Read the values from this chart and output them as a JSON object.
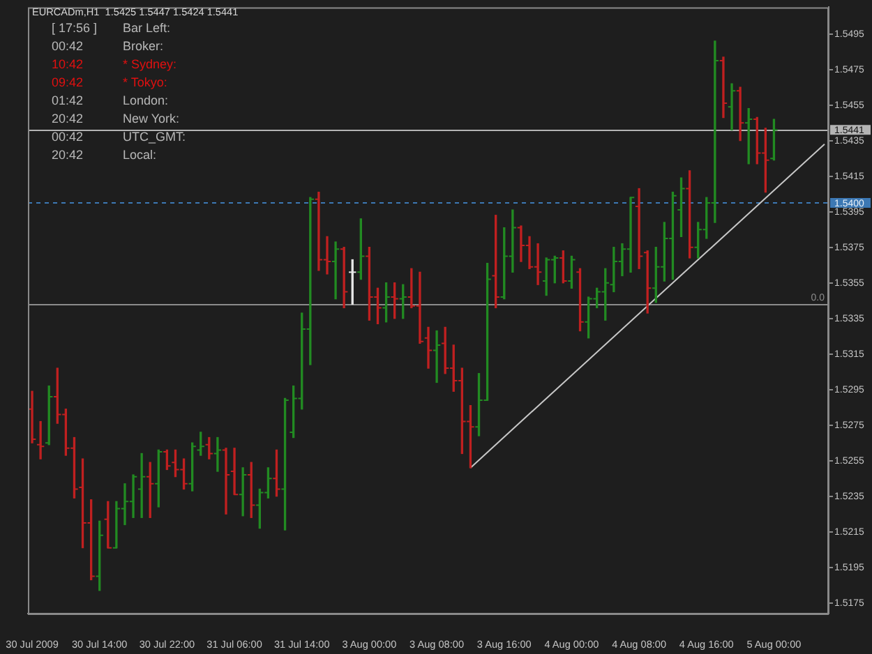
{
  "chart_data": {
    "type": "candlestick",
    "title": "EURCADm,H1  1.5425 1.5447 1.5424 1.5441",
    "categories": [
      "30 Jul 2009",
      null,
      null,
      null,
      null,
      null,
      null,
      null,
      "30 Jul 14:00",
      null,
      null,
      null,
      null,
      null,
      null,
      null,
      "30 Jul 22:00",
      null,
      null,
      null,
      null,
      null,
      null,
      null,
      "31 Jul 06:00",
      null,
      null,
      null,
      null,
      null,
      null,
      null,
      "31 Jul 14:00",
      null,
      null,
      null,
      null,
      null,
      null,
      null,
      "3 Aug 00:00",
      null,
      null,
      null,
      null,
      null,
      null,
      null,
      "3 Aug 08:00",
      null,
      null,
      null,
      null,
      null,
      null,
      null,
      "3 Aug 16:00",
      null,
      null,
      null,
      null,
      null,
      null,
      null,
      "4 Aug 00:00",
      null,
      null,
      null,
      null,
      null,
      null,
      null,
      "4 Aug 08:00",
      null,
      null,
      null,
      null,
      null,
      null,
      null,
      "4 Aug 16:00",
      null,
      null,
      null,
      null,
      null,
      null,
      null,
      "5 Aug 00:00",
      null,
      null,
      null,
      null,
      null,
      null
    ],
    "ohlc": [
      [
        1.5284,
        1.5294,
        1.5265,
        1.5267
      ],
      [
        1.5264,
        1.5277,
        1.5256,
        1.5263
      ],
      [
        1.5265,
        1.5297,
        1.5264,
        1.5291
      ],
      [
        1.5291,
        1.5307,
        1.5276,
        1.5281
      ],
      [
        1.5281,
        1.5284,
        1.5258,
        1.5262
      ],
      [
        1.5262,
        1.5268,
        1.5234,
        1.5239
      ],
      [
        1.524,
        1.5256,
        1.5206,
        1.522
      ],
      [
        1.522,
        1.5233,
        1.5188,
        1.519
      ],
      [
        1.519,
        1.5221,
        1.5182,
        1.5213
      ],
      [
        1.5222,
        1.5232,
        1.5206,
        1.5206
      ],
      [
        1.5206,
        1.5232,
        1.5206,
        1.5228
      ],
      [
        1.5228,
        1.5242,
        1.5219,
        1.5232
      ],
      [
        1.5232,
        1.5247,
        1.5223,
        1.5246
      ],
      [
        1.5239,
        1.5259,
        1.5223,
        1.5246
      ],
      [
        1.5246,
        1.5254,
        1.5223,
        1.5242
      ],
      [
        1.5242,
        1.5261,
        1.5229,
        1.526
      ],
      [
        1.526,
        1.5261,
        1.525,
        1.5252
      ],
      [
        1.5254,
        1.5261,
        1.5246,
        1.525
      ],
      [
        1.525,
        1.5256,
        1.5239,
        1.5242
      ],
      [
        1.5242,
        1.5265,
        1.5238,
        1.5263
      ],
      [
        1.5261,
        1.5271,
        1.5258,
        1.5263
      ],
      [
        1.5264,
        1.5268,
        1.5256,
        1.5259
      ],
      [
        1.5259,
        1.5268,
        1.5249,
        1.5261
      ],
      [
        1.5261,
        1.5262,
        1.5225,
        1.5247
      ],
      [
        1.5249,
        1.5262,
        1.5236,
        1.5236
      ],
      [
        1.5236,
        1.5251,
        1.5224,
        1.5247
      ],
      [
        1.5247,
        1.5254,
        1.5223,
        1.523
      ],
      [
        1.523,
        1.5239,
        1.5217,
        1.5237
      ],
      [
        1.5237,
        1.5251,
        1.5234,
        1.5245
      ],
      [
        1.5245,
        1.5261,
        1.5235,
        1.5239
      ],
      [
        1.5239,
        1.529,
        1.5216,
        1.5289
      ],
      [
        1.5271,
        1.5297,
        1.5268,
        1.529
      ],
      [
        1.529,
        1.5338,
        1.5284,
        1.5329
      ],
      [
        1.5329,
        1.5403,
        1.5309,
        1.5402
      ],
      [
        1.5402,
        1.5406,
        1.5362,
        1.5368
      ],
      [
        1.5368,
        1.5381,
        1.536,
        1.5367
      ],
      [
        1.5367,
        1.5378,
        1.5346,
        1.5374
      ],
      [
        1.5374,
        1.5375,
        1.5341,
        1.535
      ],
      [
        1.5361,
        1.5368,
        1.5343,
        1.5361
      ],
      [
        1.5361,
        1.5391,
        1.5357,
        1.537
      ],
      [
        1.537,
        1.5375,
        1.5334,
        1.5347
      ],
      [
        1.5347,
        1.5352,
        1.5332,
        1.5341
      ],
      [
        1.5341,
        1.5355,
        1.5333,
        1.5347
      ],
      [
        1.5347,
        1.5355,
        1.5335,
        1.5346
      ],
      [
        1.5346,
        1.5354,
        1.5335,
        1.5347
      ],
      [
        1.5347,
        1.5363,
        1.5341,
        1.5342
      ],
      [
        1.5342,
        1.5361,
        1.5321,
        1.5322
      ],
      [
        1.5324,
        1.533,
        1.5307,
        1.5317
      ],
      [
        1.5317,
        1.5328,
        1.5299,
        1.532
      ],
      [
        1.5321,
        1.533,
        1.5304,
        1.5307
      ],
      [
        1.5307,
        1.532,
        1.5294,
        1.53
      ],
      [
        1.53,
        1.5307,
        1.5259,
        1.5277
      ],
      [
        1.5277,
        1.5286,
        1.5251,
        1.5274
      ],
      [
        1.5274,
        1.5304,
        1.5269,
        1.5289
      ],
      [
        1.5289,
        1.5366,
        1.5289,
        1.5357
      ],
      [
        1.5359,
        1.5393,
        1.5341,
        1.5347
      ],
      [
        1.5347,
        1.5386,
        1.5346,
        1.537
      ],
      [
        1.537,
        1.5396,
        1.5361,
        1.5386
      ],
      [
        1.5386,
        1.5387,
        1.5367,
        1.5376
      ],
      [
        1.5376,
        1.5381,
        1.5363,
        1.5364
      ],
      [
        1.5364,
        1.5377,
        1.5354,
        1.5361
      ],
      [
        1.5356,
        1.5369,
        1.5348,
        1.5368
      ],
      [
        1.5368,
        1.537,
        1.5355,
        1.5369
      ],
      [
        1.5369,
        1.5373,
        1.5355,
        1.5356
      ],
      [
        1.5356,
        1.537,
        1.5352,
        1.5368
      ],
      [
        1.5361,
        1.5363,
        1.5328,
        1.5333
      ],
      [
        1.5333,
        1.5347,
        1.5324,
        1.5346
      ],
      [
        1.5346,
        1.5352,
        1.5341,
        1.535
      ],
      [
        1.535,
        1.5363,
        1.5334,
        1.5355
      ],
      [
        1.5354,
        1.5375,
        1.535,
        1.5367
      ],
      [
        1.5367,
        1.5377,
        1.5359,
        1.5374
      ],
      [
        1.5374,
        1.5403,
        1.5361,
        1.5403
      ],
      [
        1.5398,
        1.5408,
        1.5363,
        1.537
      ],
      [
        1.5372,
        1.5373,
        1.5338,
        1.5352
      ],
      [
        1.5352,
        1.5375,
        1.5344,
        1.5364
      ],
      [
        1.5364,
        1.5389,
        1.5356,
        1.538
      ],
      [
        1.538,
        1.5406,
        1.5357,
        1.5404
      ],
      [
        1.5396,
        1.5414,
        1.5381,
        1.5408
      ],
      [
        1.5408,
        1.5418,
        1.5369,
        1.5375
      ],
      [
        1.5375,
        1.5389,
        1.5369,
        1.5385
      ],
      [
        1.5385,
        1.5403,
        1.538,
        1.54
      ],
      [
        1.54,
        1.5491,
        1.5389,
        1.548
      ],
      [
        1.548,
        1.5482,
        1.5448,
        1.5456
      ],
      [
        1.5454,
        1.5467,
        1.5441,
        1.5463
      ],
      [
        1.5463,
        1.5465,
        1.5435,
        1.5445
      ],
      [
        1.5445,
        1.5453,
        1.5422,
        1.5447
      ],
      [
        1.5447,
        1.5448,
        1.5422,
        1.5428
      ],
      [
        1.5428,
        1.5442,
        1.5406,
        1.5424
      ],
      [
        1.5425,
        1.5447,
        1.5424,
        1.5441
      ],
      null,
      null,
      null,
      null,
      null,
      null
    ],
    "colors": [
      "#c02020",
      "#c02020",
      "#228b22",
      "#c02020",
      "#c02020",
      "#c02020",
      "#c02020",
      "#c02020",
      "#228b22",
      "#c02020",
      "#228b22",
      "#228b22",
      "#228b22",
      "#228b22",
      "#c02020",
      "#228b22",
      "#c02020",
      "#c02020",
      "#c02020",
      "#228b22",
      "#228b22",
      "#c02020",
      "#228b22",
      "#c02020",
      "#c02020",
      "#228b22",
      "#c02020",
      "#228b22",
      "#228b22",
      "#c02020",
      "#228b22",
      "#228b22",
      "#228b22",
      "#228b22",
      "#c02020",
      "#c02020",
      "#228b22",
      "#c02020",
      "#e8e8e8",
      "#228b22",
      "#c02020",
      "#c02020",
      "#228b22",
      "#c02020",
      "#228b22",
      "#c02020",
      "#c02020",
      "#c02020",
      "#228b22",
      "#c02020",
      "#c02020",
      "#c02020",
      "#c02020",
      "#228b22",
      "#228b22",
      "#c02020",
      "#228b22",
      "#228b22",
      "#c02020",
      "#c02020",
      "#c02020",
      "#228b22",
      "#228b22",
      "#c02020",
      "#228b22",
      "#c02020",
      "#228b22",
      "#228b22",
      "#228b22",
      "#228b22",
      "#228b22",
      "#228b22",
      "#c02020",
      "#c02020",
      "#228b22",
      "#228b22",
      "#228b22",
      "#228b22",
      "#c02020",
      "#228b22",
      "#228b22",
      "#228b22",
      "#c02020",
      "#228b22",
      "#c02020",
      "#228b22",
      "#c02020",
      "#c02020",
      "#228b22",
      null,
      null,
      null,
      null,
      null,
      null
    ],
    "series": [
      {
        "type": "line",
        "color": "#c8c8c8",
        "values": [
          null,
          null,
          null,
          null,
          null,
          null,
          null,
          null,
          null,
          null,
          null,
          null,
          null,
          null,
          null,
          null,
          null,
          null,
          null,
          null,
          null,
          null,
          null,
          null,
          null,
          null,
          null,
          null,
          null,
          null,
          null,
          null,
          null,
          null,
          null,
          null,
          null,
          null,
          null,
          null,
          null,
          null,
          null,
          null,
          null,
          null,
          null,
          null,
          null,
          null,
          null,
          null,
          1.5251,
          null,
          null,
          null,
          null,
          null,
          null,
          null,
          null,
          null,
          null,
          null,
          null,
          null,
          null,
          null,
          null,
          null,
          null,
          null,
          null,
          null,
          null,
          null,
          null,
          null,
          null,
          null,
          null,
          null,
          null,
          null,
          null,
          null,
          null,
          null,
          null,
          null,
          null,
          null,
          null,
          null,
          1.5433
        ]
      }
    ],
    "ylim": [
      1.5169,
      1.551
    ],
    "yticks": [
      1.5175,
      1.5195,
      1.5215,
      1.5235,
      1.5255,
      1.5275,
      1.5295,
      1.5315,
      1.5335,
      1.5355,
      1.5375,
      1.5395,
      1.5415,
      1.5435,
      1.5455,
      1.5475,
      1.5495
    ],
    "ref_lines": [
      {
        "axis": "y",
        "value": 1.5441,
        "label": "1.5441",
        "color": "#b4b4b4"
      },
      {
        "axis": "y",
        "value": 1.54,
        "label": "1.5400",
        "color": "#3c78b4",
        "line_style": "dashed"
      },
      {
        "axis": "y",
        "value": 1.5343,
        "color": "#8c8c8c"
      }
    ],
    "annotations": [
      "[ 17:56 ]",
      "Bar Left:",
      "00:42",
      "Broker:",
      "10:42",
      "* Sydney:",
      "09:42",
      "* Tokyo:",
      "01:42",
      "London:",
      "20:42",
      "New York:",
      "00:42",
      "UTC_GMT:",
      "20:42",
      "Local:",
      {
        "text": "0.0",
        "y": 1.5343
      }
    ]
  }
}
